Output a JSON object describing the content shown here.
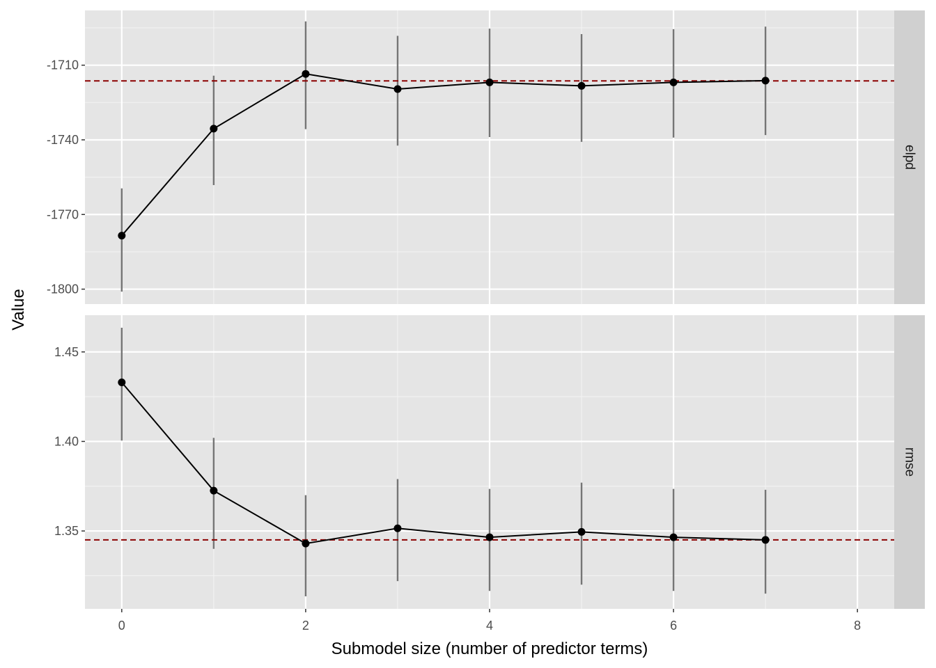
{
  "chart_data": {
    "type": "line",
    "xlabel": "Submodel size (number of predictor terms)",
    "ylabel": "Value",
    "x_ticks": [
      0,
      2,
      4,
      6,
      8
    ],
    "x_range": [
      -0.4,
      8.4
    ],
    "grid": true,
    "facets": [
      {
        "strip": "elpd",
        "y_range": [
          -1806,
          -1688
        ],
        "y_ticks": [
          -1800,
          -1770,
          -1740,
          -1710
        ],
        "y_tick_labels": [
          "-1800",
          "-1770",
          "-1740",
          "-1710"
        ],
        "reference_line": -1716.3,
        "reference_color": "#8B0000",
        "points": [
          {
            "x": 0,
            "y": -1778.5,
            "lower": -1801.0,
            "upper": -1759.5
          },
          {
            "x": 1,
            "y": -1735.5,
            "lower": -1758.2,
            "upper": -1714.2
          },
          {
            "x": 2,
            "y": -1713.5,
            "lower": -1735.7,
            "upper": -1692.4
          },
          {
            "x": 3,
            "y": -1719.6,
            "lower": -1742.3,
            "upper": -1698.2
          },
          {
            "x": 4,
            "y": -1716.9,
            "lower": -1738.9,
            "upper": -1695.3
          },
          {
            "x": 5,
            "y": -1718.3,
            "lower": -1740.8,
            "upper": -1697.5
          },
          {
            "x": 6,
            "y": -1716.9,
            "lower": -1739.1,
            "upper": -1695.5
          },
          {
            "x": 7,
            "y": -1716.2,
            "lower": -1738.1,
            "upper": -1694.5
          }
        ]
      },
      {
        "strip": "rmse",
        "y_range": [
          1.3065,
          1.4705
        ],
        "y_ticks": [
          1.35,
          1.4,
          1.45
        ],
        "y_tick_labels": [
          "1.35",
          "1.40",
          "1.45"
        ],
        "reference_line": 1.345,
        "reference_color": "#8B0000",
        "points": [
          {
            "x": 0,
            "y": 1.433,
            "lower": 1.4005,
            "upper": 1.4635
          },
          {
            "x": 1,
            "y": 1.3725,
            "lower": 1.34,
            "upper": 1.402
          },
          {
            "x": 2,
            "y": 1.343,
            "lower": 1.3135,
            "upper": 1.37
          },
          {
            "x": 3,
            "y": 1.3515,
            "lower": 1.322,
            "upper": 1.379
          },
          {
            "x": 4,
            "y": 1.3465,
            "lower": 1.3165,
            "upper": 1.3735
          },
          {
            "x": 5,
            "y": 1.3495,
            "lower": 1.32,
            "upper": 1.377
          },
          {
            "x": 6,
            "y": 1.3465,
            "lower": 1.3165,
            "upper": 1.3735
          },
          {
            "x": 7,
            "y": 1.345,
            "lower": 1.315,
            "upper": 1.373
          }
        ]
      }
    ]
  }
}
